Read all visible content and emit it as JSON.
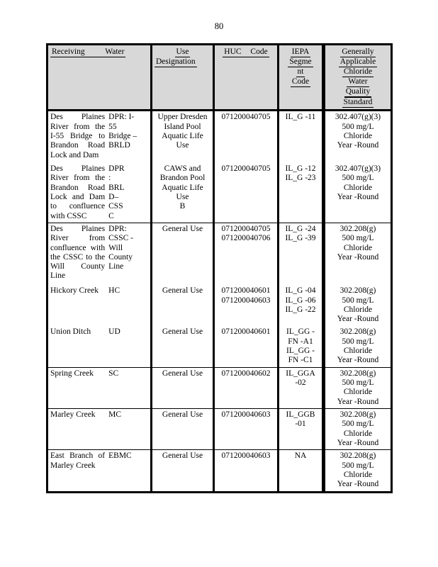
{
  "page": {
    "number": "80"
  },
  "colors": {
    "header_bg": "#d8d8d8",
    "border": "#000000",
    "text": "#000000",
    "page_bg": "#ffffff"
  },
  "table": {
    "header": {
      "receiving_water": "Receiving Water",
      "use_line1": "Use",
      "use_line2": "Designation",
      "huc": "HUC Code",
      "iepa_lines": [
        "IEPA",
        "Segme",
        "nt",
        "Code"
      ],
      "standard_lines": [
        "Generally",
        "Applicable",
        "Chloride",
        "Water",
        "Quality",
        "Standard"
      ]
    },
    "rows": [
      {
        "name": "Des Plaines River from the I-55 Bridge to Brandon Road Lock and Dam",
        "abbr": "DPR: I-\n55\nBridge –\nBRLD",
        "use": "Upper Dresden\nIsland Pool\nAquatic Life Use",
        "huc": "071200040705",
        "iepa": "IL_G -11",
        "standard": "302.407(g)(3)\n500 mg/L\nChloride\nYear -Round",
        "separator": false
      },
      {
        "name": "Des Plaines River from the Brandon Road Lock and Dam to confluence with CSSC",
        "abbr": "DPR\n:\nBRL\nD–\nCSS\nC",
        "use": "CAWS and\nBrandon Pool\nAquatic Life Use\nB",
        "huc": "071200040705",
        "iepa": "IL_G -12\nIL_G -23",
        "standard": "302.407(g)(3)\n500 mg/L\nChloride\nYear -Round",
        "separator": false
      },
      {
        "name": "Des Plaines River from confluence with the CSSC to the Will County Line",
        "abbr": "DPR:\nCSSC -\nWill\nCounty\nLine",
        "use": "General Use",
        "huc": "071200040705\n071200040706",
        "iepa": "IL_G -24\nIL_G -39",
        "standard": "302.208(g)\n500 mg/L\nChloride\nYear -Round",
        "separator": true
      },
      {
        "name": "Hickory Creek",
        "abbr": "HC",
        "use": "General Use",
        "huc": "071200040601\n071200040603",
        "iepa": "IL_G -04\nIL_G -06\nIL_G -22",
        "standard": "302.208(g)\n500 mg/L\nChloride\nYear -Round",
        "separator": false
      },
      {
        "name": "Union Ditch",
        "abbr": "UD",
        "use": "General Use",
        "huc": "071200040601",
        "iepa": "IL_GG -\nFN -A1\nIL_GG -\nFN -C1",
        "standard": "302.208(g)\n500 mg/L\nChloride\nYear -Round",
        "separator": false
      },
      {
        "name": "Spring Creek",
        "abbr": "SC",
        "use": "General Use",
        "huc": "071200040602",
        "iepa": "IL_GGA -02",
        "standard": "302.208(g)\n500 mg/L\nChloride\nYear -Round",
        "separator": true
      },
      {
        "name": "Marley Creek",
        "abbr": "MC",
        "use": "General Use",
        "huc": "071200040603",
        "iepa": "IL_GGB -01",
        "standard": "302.208(g)\n500 mg/L\nChloride\nYear -Round",
        "separator": true
      },
      {
        "name": "East Branch of Marley Creek",
        "abbr": "EBMC",
        "use": "General Use",
        "huc": "071200040603",
        "iepa": "NA",
        "standard": "302.208(g)\n500 mg/L\nChloride\nYear -Round",
        "separator": true
      }
    ]
  }
}
